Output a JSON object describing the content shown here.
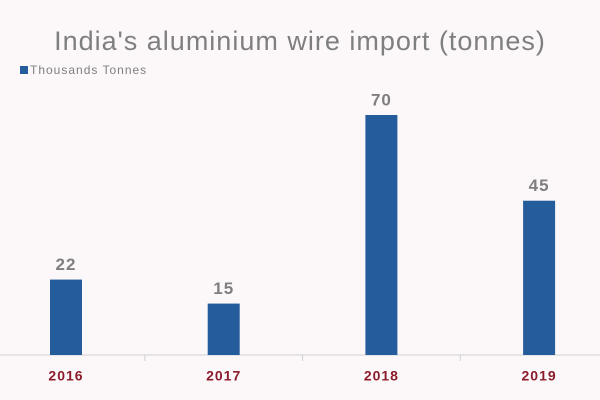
{
  "chart_data": {
    "type": "bar",
    "title": "India's aluminium wire import (tonnes)",
    "categories": [
      "2016",
      "2017",
      "2018",
      "2019"
    ],
    "series": [
      {
        "name": "Thousands Tonnes",
        "color": "#245c9c",
        "values": [
          22,
          15,
          70,
          45
        ]
      }
    ]
  }
}
